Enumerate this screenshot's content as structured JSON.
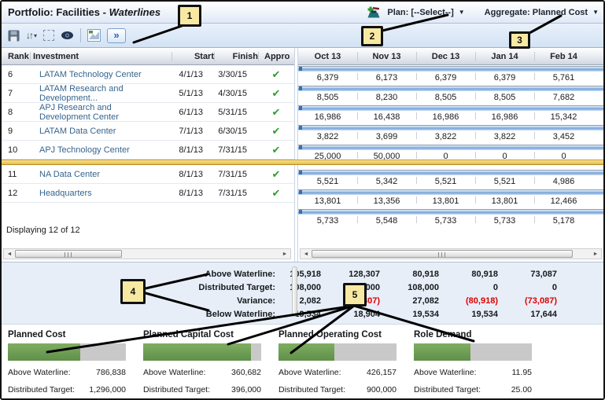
{
  "titlebar": {
    "title_prefix": "Portfolio: Facilities - ",
    "title_emphasis": "Waterlines",
    "plan_dropdown": "Plan: [--Select--]",
    "aggregate_dropdown": "Aggregate: Planned Cost"
  },
  "icons": {
    "check": "✔",
    "dropdown_arrow": "▼",
    "sort_glyph": "↓↑",
    "caret_down": "▾",
    "expand_glyph": "»",
    "scroll_left": "◄",
    "scroll_right": "►"
  },
  "left_grid": {
    "columns": [
      "Rank",
      "Investment",
      "Start",
      "Finish",
      "Appro"
    ],
    "rows": [
      {
        "rank": "6",
        "investment": "LATAM Technology Center",
        "start": "4/1/13",
        "finish": "3/30/15"
      },
      {
        "rank": "7",
        "investment": "LATAM Research and Development...",
        "start": "5/1/13",
        "finish": "4/30/15"
      },
      {
        "rank": "8",
        "investment": "APJ Research and Development Center",
        "start": "6/1/13",
        "finish": "5/31/15"
      },
      {
        "rank": "9",
        "investment": "LATAM Data Center",
        "start": "7/1/13",
        "finish": "6/30/15"
      },
      {
        "rank": "10",
        "investment": "APJ Technology Center",
        "start": "8/1/13",
        "finish": "7/31/15"
      },
      {
        "rank": "11",
        "investment": "NA Data Center",
        "start": "8/1/13",
        "finish": "7/31/15"
      },
      {
        "rank": "12",
        "investment": "Headquarters",
        "start": "8/1/13",
        "finish": "7/31/15"
      }
    ],
    "status": "Displaying 12 of 12"
  },
  "right_grid": {
    "months": [
      "Oct 13",
      "Nov 13",
      "Dec 13",
      "Jan 14",
      "Feb 14"
    ],
    "rows_above": [
      [
        "6,379",
        "6,173",
        "6,379",
        "6,379",
        "5,761"
      ],
      [
        "8,505",
        "8,230",
        "8,505",
        "8,505",
        "7,682"
      ],
      [
        "16,986",
        "16,438",
        "16,986",
        "16,986",
        "15,342"
      ],
      [
        "3,822",
        "3,699",
        "3,822",
        "3,822",
        "3,452"
      ],
      [
        "25,000",
        "50,000",
        "0",
        "0",
        "0"
      ]
    ],
    "rows_below": [
      [
        "5,521",
        "5,342",
        "5,521",
        "5,521",
        "4,986"
      ],
      [
        "13,801",
        "13,356",
        "13,801",
        "13,801",
        "12,466"
      ],
      [
        "5,733",
        "5,548",
        "5,733",
        "5,733",
        "5,178"
      ]
    ]
  },
  "summary": {
    "rows": [
      {
        "label": "Above Waterline:",
        "values": [
          "105,918",
          "128,307",
          "80,918",
          "80,918",
          "73,087"
        ]
      },
      {
        "label": "Distributed Target:",
        "values": [
          "108,000",
          "108,000",
          "108,000",
          "0",
          "0"
        ]
      },
      {
        "label": "Variance:",
        "values": [
          "2,082",
          "(20,307)",
          "27,082",
          "(80,918)",
          "(73,087)"
        ]
      },
      {
        "label": "Below Waterline:",
        "values": [
          "19,534",
          "18,904",
          "19,534",
          "19,534",
          "17,644"
        ]
      }
    ]
  },
  "cards": {
    "items": [
      {
        "title": "Planned Cost",
        "above_label": "Above Waterline:",
        "above_value": "786,838",
        "target_label": "Distributed Target:",
        "target_value": "1,296,000",
        "fill_pct": 61
      },
      {
        "title": "Planned Capital Cost",
        "above_label": "Above Waterline:",
        "above_value": "360,682",
        "target_label": "Distributed Target:",
        "target_value": "396,000",
        "fill_pct": 91
      },
      {
        "title": "Planned Operating Cost",
        "above_label": "Above Waterline:",
        "above_value": "426,157",
        "target_label": "Distributed Target:",
        "target_value": "900,000",
        "fill_pct": 47
      },
      {
        "title": "Role Demand",
        "above_label": "Above Waterline:",
        "above_value": "11.95",
        "target_label": "Distributed Target:",
        "target_value": "25.00",
        "fill_pct": 48
      }
    ]
  },
  "callouts": {
    "labels": [
      "1",
      "2",
      "3",
      "4",
      "5"
    ]
  },
  "colors": {
    "waterline_gold": "#e3bc52",
    "bar_blue": "#7fa9dc",
    "card_green": "#6d9c53",
    "negative_red": "#dd0000",
    "link_blue": "#36648f",
    "approved_green": "#2f9e2f"
  }
}
